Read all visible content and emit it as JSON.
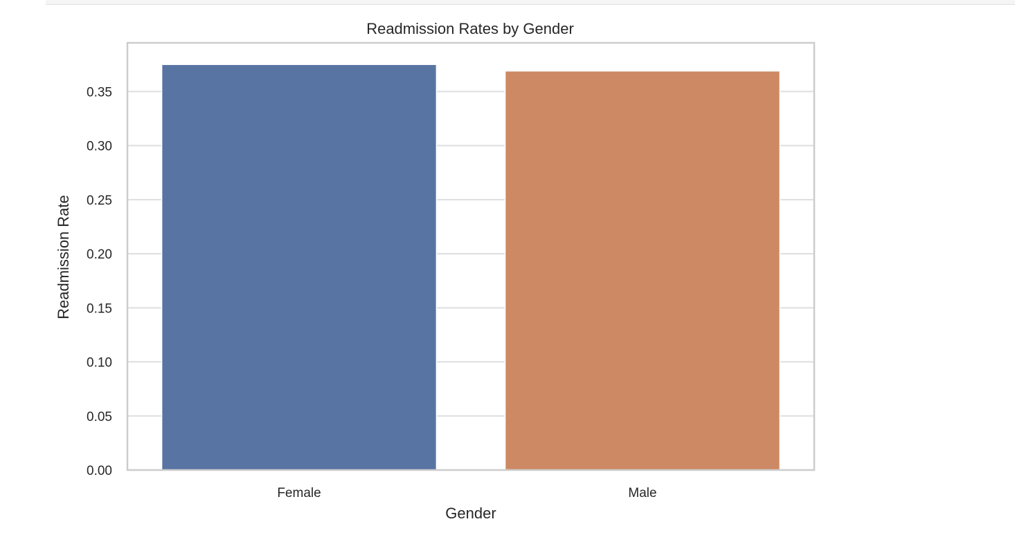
{
  "chart_data": {
    "type": "bar",
    "title": "Readmission Rates by Gender",
    "xlabel": "Gender",
    "ylabel": "Readmission Rate",
    "categories": [
      "Female",
      "Male"
    ],
    "values": [
      0.375,
      0.369
    ],
    "colors": [
      "#5874a3",
      "#cd8963"
    ],
    "ylim": [
      0,
      0.395
    ],
    "yticks": [
      0.0,
      0.05,
      0.1,
      0.15,
      0.2,
      0.25,
      0.3,
      0.35
    ],
    "ytick_labels": [
      "0.00",
      "0.05",
      "0.10",
      "0.15",
      "0.20",
      "0.25",
      "0.30",
      "0.35"
    ],
    "grid": "horizontal",
    "grid_color": "#dedede",
    "frame_color": "#cccccc"
  }
}
